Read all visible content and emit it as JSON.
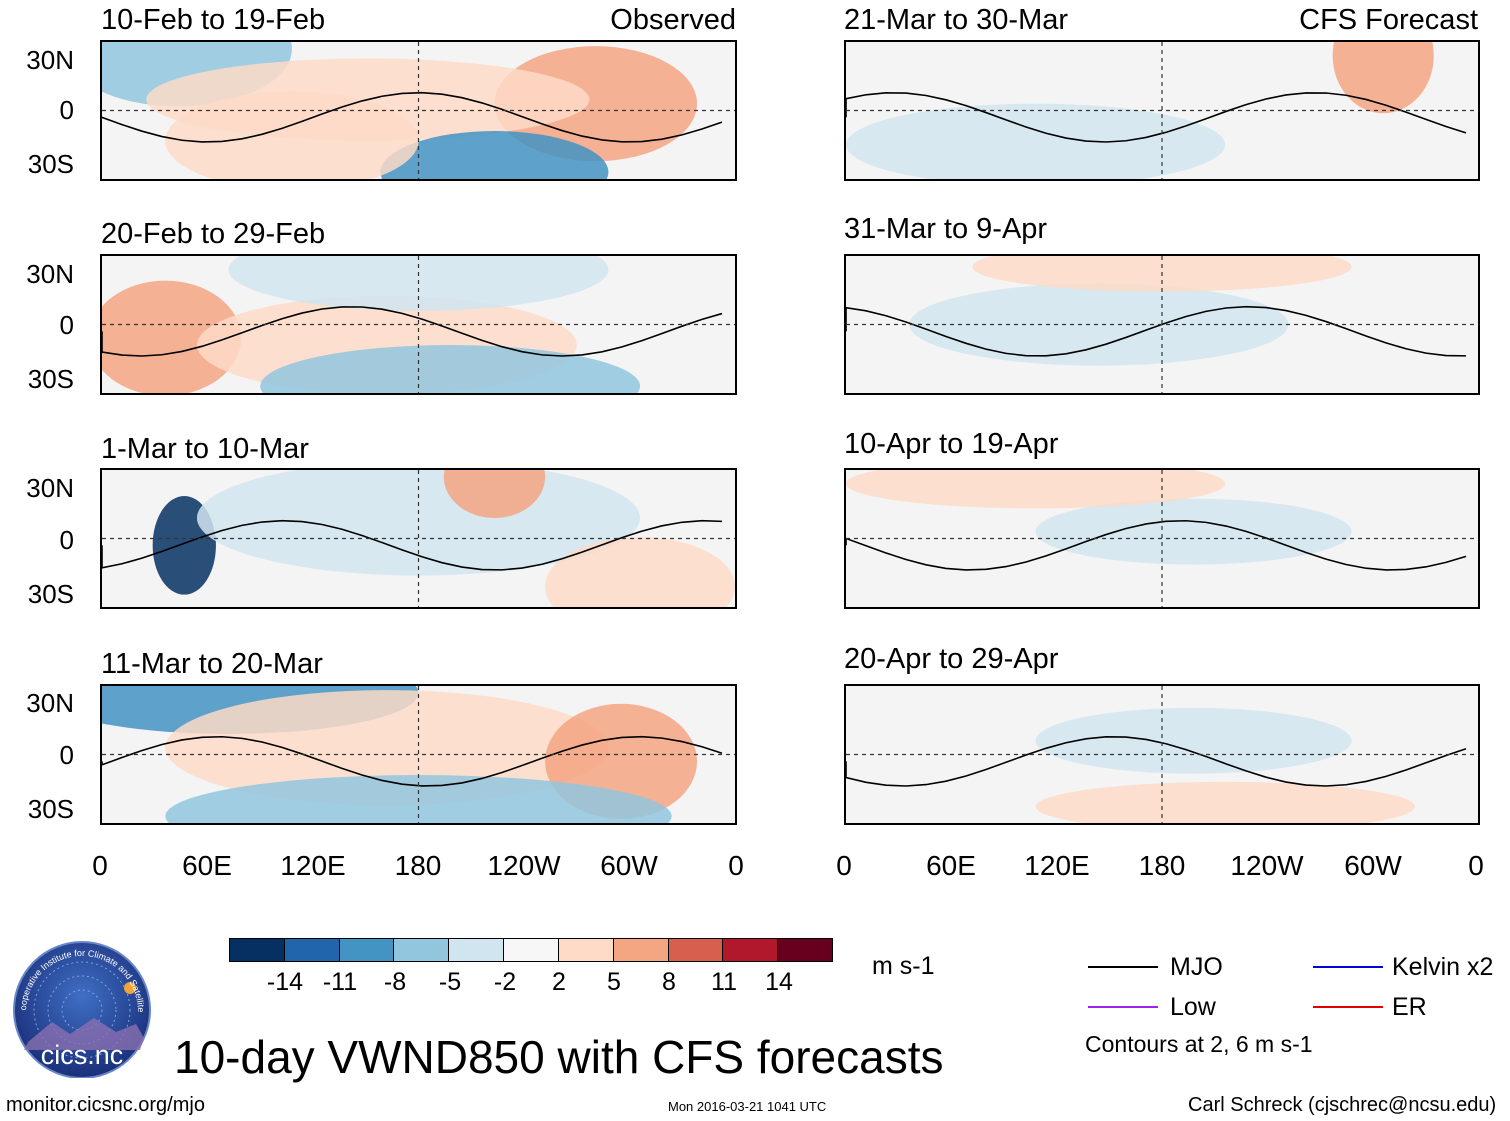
{
  "panels_left": [
    {
      "title": "10-Feb to 19-Feb",
      "tag": "Observed"
    },
    {
      "title": "20-Feb to 29-Feb",
      "tag": ""
    },
    {
      "title": "1-Mar to 10-Mar",
      "tag": ""
    },
    {
      "title": "11-Mar to 20-Mar",
      "tag": ""
    }
  ],
  "panels_right": [
    {
      "title": "21-Mar to 30-Mar",
      "tag": "CFS Forecast"
    },
    {
      "title": "31-Mar to 9-Apr",
      "tag": ""
    },
    {
      "title": "10-Apr to 19-Apr",
      "tag": ""
    },
    {
      "title": "20-Apr to 29-Apr",
      "tag": ""
    }
  ],
  "lat_labels": [
    "30N",
    "0",
    "30S"
  ],
  "lon_labels": [
    "0",
    "60E",
    "120E",
    "180",
    "120W",
    "60W",
    "0"
  ],
  "colorbar": {
    "colors": [
      "#053061",
      "#2166ac",
      "#4393c3",
      "#92c5de",
      "#d1e5f0",
      "#f7f7f7",
      "#fddbc7",
      "#f4a582",
      "#d6604d",
      "#b2182b",
      "#67001f"
    ],
    "labels": [
      "-14",
      "-11",
      "-8",
      "-5",
      "-2",
      "2",
      "5",
      "8",
      "11",
      "14"
    ],
    "unit": "m s-1"
  },
  "legend": {
    "items": [
      {
        "label": "MJO",
        "color": "#000000"
      },
      {
        "label": "Kelvin x2",
        "color": "#0000dd"
      },
      {
        "label": "Low",
        "color": "#a020f0"
      },
      {
        "label": "ER",
        "color": "#e00000"
      }
    ],
    "note": "Contours at 2, 6 m s-1"
  },
  "logo_text": "cics.nc",
  "logo_arc_text": "Cooperative Institute for Climate and Satellites",
  "main_title": "10-day VWND850 with CFS forecasts",
  "footer": {
    "left": "monitor.cicsnc.org/mjo",
    "center": "Mon 2016-03-21 1041 UTC",
    "right": "Carl Schreck (cjschrec@ncsu.edu)"
  }
}
